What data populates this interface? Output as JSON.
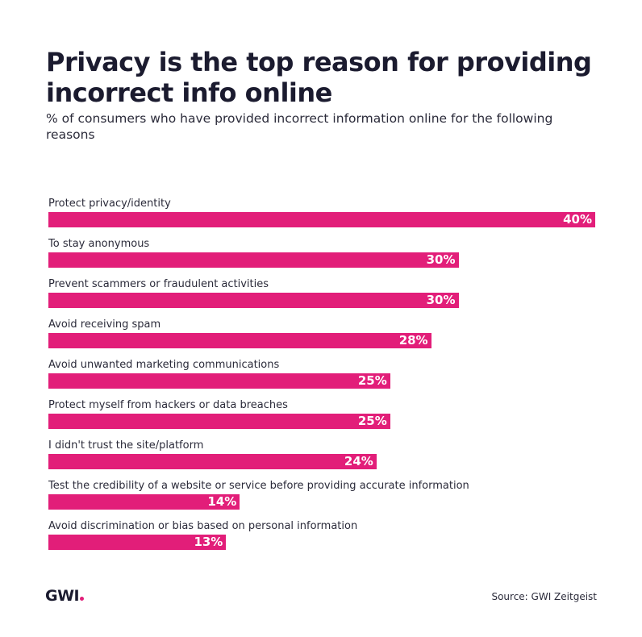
{
  "title": "Privacy is the top reason for providing incorrect info online",
  "subtitle": "% of consumers who have provided incorrect information online for the following reasons",
  "source": "Source: GWI Zeitgeist",
  "logo_text": "GWI",
  "colors": {
    "bar": "#e21e79",
    "text": "#1b1b2f",
    "value_text": "#ffffff"
  },
  "chart_data": {
    "type": "bar",
    "orientation": "horizontal",
    "categories": [
      "Protect privacy/identity",
      "To stay anonymous",
      "Prevent scammers or fraudulent activities",
      "Avoid receiving spam",
      "Avoid unwanted marketing communications",
      "Protect myself from hackers or data breaches",
      "I didn't trust the site/platform",
      "Test the credibility of a website or service before providing accurate information",
      "Avoid discrimination or bias based on personal information"
    ],
    "values": [
      40,
      30,
      30,
      28,
      25,
      25,
      24,
      14,
      13
    ],
    "value_labels": [
      "40%",
      "30%",
      "30%",
      "28%",
      "25%",
      "25%",
      "24%",
      "14%",
      "13%"
    ],
    "xlim": [
      0,
      40
    ],
    "grid": false,
    "legend": "none"
  }
}
